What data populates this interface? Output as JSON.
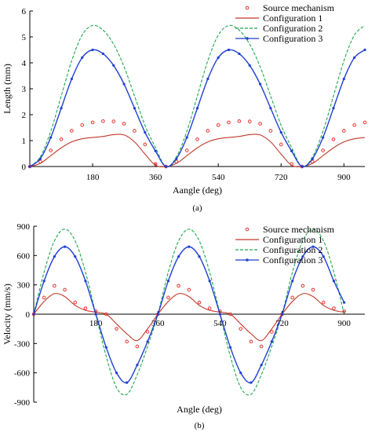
{
  "chart_data": [
    {
      "type": "line",
      "panel_label": "(a)",
      "xlabel": "Aangle (deg)",
      "ylabel": "Length (mm)",
      "xlim": [
        0,
        960
      ],
      "ylim": [
        0,
        6
      ],
      "x_ticks": [
        180,
        360,
        540,
        720,
        900
      ],
      "y_ticks": [
        0,
        1,
        2,
        3,
        4,
        5,
        6
      ],
      "legend_position": "top-right",
      "grid": false,
      "series": [
        {
          "name": "Source mechanism",
          "style": "circles",
          "color": "#e8322d",
          "x": [
            0,
            30,
            60,
            90,
            120,
            150,
            180,
            210,
            240,
            270,
            300,
            330,
            360,
            390,
            420,
            450,
            480,
            510,
            540,
            570,
            600,
            630,
            660,
            690,
            720,
            750,
            780,
            810,
            840,
            870,
            900,
            930,
            960
          ],
          "y": [
            0.0,
            0.19,
            0.62,
            1.05,
            1.38,
            1.6,
            1.7,
            1.75,
            1.74,
            1.65,
            1.38,
            0.85,
            0.1,
            0.0,
            0.19,
            0.62,
            1.05,
            1.38,
            1.6,
            1.7,
            1.75,
            1.74,
            1.65,
            1.38,
            0.85,
            0.1,
            0.0,
            0.19,
            0.62,
            1.05,
            1.38,
            1.6,
            1.7
          ]
        },
        {
          "name": "Configuration 1",
          "style": "solid",
          "color": "#c0392b",
          "x": [
            0,
            30,
            60,
            90,
            120,
            150,
            180,
            210,
            240,
            270,
            300,
            330,
            360,
            390,
            420,
            450,
            480,
            510,
            540,
            570,
            600,
            630,
            660,
            690,
            720,
            750,
            780,
            810,
            840,
            870,
            900,
            930,
            960
          ],
          "y": [
            0.0,
            0.12,
            0.42,
            0.72,
            0.95,
            1.07,
            1.12,
            1.16,
            1.23,
            1.22,
            0.95,
            0.48,
            0.05,
            0.0,
            0.12,
            0.42,
            0.72,
            0.95,
            1.07,
            1.12,
            1.16,
            1.23,
            1.22,
            0.95,
            0.48,
            0.05,
            0.0,
            0.12,
            0.42,
            0.72,
            0.95,
            1.07,
            1.12
          ]
        },
        {
          "name": "Configuration 2",
          "style": "dashed",
          "color": "#1fa84f",
          "x": [
            0,
            30,
            60,
            90,
            120,
            150,
            180,
            210,
            240,
            270,
            300,
            330,
            360,
            390,
            420,
            450,
            480,
            510,
            540,
            570,
            600,
            630,
            660,
            690,
            720,
            750,
            780,
            810,
            840,
            870,
            900,
            930,
            960
          ],
          "y": [
            0.0,
            0.37,
            1.36,
            2.72,
            4.08,
            5.07,
            5.44,
            5.26,
            4.72,
            3.85,
            2.72,
            1.59,
            0.73,
            0.0,
            0.37,
            1.36,
            2.72,
            4.08,
            5.07,
            5.44,
            5.26,
            4.72,
            3.85,
            2.72,
            1.59,
            0.73,
            0.0,
            0.37,
            1.36,
            2.72,
            4.08,
            5.07,
            5.44
          ]
        },
        {
          "name": "Configuration 3",
          "style": "solid-marker",
          "color": "#1f3fd1",
          "x": [
            0,
            30,
            60,
            90,
            120,
            150,
            180,
            210,
            240,
            270,
            300,
            330,
            360,
            390,
            420,
            450,
            480,
            510,
            540,
            570,
            600,
            630,
            660,
            690,
            720,
            750,
            780,
            810,
            840,
            870,
            900,
            930,
            960
          ],
          "y": [
            0.0,
            0.3,
            1.12,
            2.25,
            3.38,
            4.2,
            4.5,
            4.35,
            3.9,
            3.18,
            2.25,
            1.32,
            0.6,
            0.0,
            0.3,
            1.12,
            2.25,
            3.38,
            4.2,
            4.5,
            4.35,
            3.9,
            3.18,
            2.25,
            1.32,
            0.6,
            0.0,
            0.3,
            1.12,
            2.25,
            3.38,
            4.2,
            4.5
          ]
        }
      ]
    },
    {
      "type": "line",
      "panel_label": "(b)",
      "xlabel": "Angle (deg)",
      "ylabel": "Velocity (mm/s)",
      "xlim": [
        0,
        960
      ],
      "ylim": [
        -900,
        900
      ],
      "x_ticks": [
        180,
        360,
        540,
        720,
        900
      ],
      "y_ticks": [
        -900,
        -600,
        -300,
        0,
        300,
        600,
        900
      ],
      "legend_position": "top-right",
      "grid": false,
      "series": [
        {
          "name": "Source mechanism",
          "style": "circles",
          "color": "#e8322d",
          "x": [
            0,
            30,
            60,
            90,
            120,
            150,
            180,
            210,
            240,
            270,
            300,
            330,
            360,
            390,
            420,
            450,
            480,
            510,
            540,
            570,
            600,
            630,
            660,
            690,
            720,
            750,
            780,
            810,
            840,
            870,
            900
          ],
          "y": [
            0,
            170,
            290,
            250,
            120,
            60,
            30,
            0,
            -150,
            -280,
            -330,
            -180,
            0,
            170,
            290,
            250,
            120,
            60,
            30,
            0,
            -150,
            -280,
            -330,
            -180,
            0,
            170,
            290,
            250,
            120,
            60,
            30
          ]
        },
        {
          "name": "Configuration 1",
          "style": "solid",
          "color": "#c0392b",
          "x": [
            0,
            30,
            60,
            90,
            120,
            150,
            180,
            210,
            240,
            270,
            300,
            330,
            360,
            390,
            420,
            450,
            480,
            510,
            540,
            570,
            600,
            630,
            660,
            690,
            720,
            750,
            780,
            810,
            840,
            870,
            900
          ],
          "y": [
            0,
            130,
            210,
            180,
            90,
            40,
            20,
            0,
            -100,
            -200,
            -270,
            -150,
            0,
            130,
            210,
            180,
            90,
            40,
            20,
            0,
            -100,
            -200,
            -270,
            -150,
            0,
            130,
            210,
            180,
            90,
            40,
            20
          ]
        },
        {
          "name": "Configuration 2",
          "style": "dashed",
          "color": "#1fa84f",
          "x": [
            0,
            30,
            60,
            90,
            120,
            150,
            180,
            210,
            240,
            270,
            300,
            330,
            360,
            390,
            420,
            450,
            480,
            510,
            540,
            570,
            600,
            630,
            660,
            690,
            720,
            750,
            780,
            810,
            840,
            870,
            900
          ],
          "y": [
            0,
            430,
            750,
            870,
            750,
            430,
            0,
            -430,
            -750,
            -820,
            -620,
            -330,
            0,
            430,
            750,
            870,
            750,
            430,
            0,
            -430,
            -750,
            -820,
            -620,
            -330,
            0,
            430,
            750,
            870,
            750,
            430,
            0
          ]
        },
        {
          "name": "Configuration 3",
          "style": "solid-marker",
          "color": "#1f3fd1",
          "x": [
            0,
            30,
            60,
            90,
            120,
            150,
            180,
            210,
            240,
            270,
            300,
            330,
            360,
            390,
            420,
            450,
            480,
            510,
            540,
            570,
            600,
            630,
            660,
            690,
            720,
            750,
            780,
            810,
            840,
            870,
            900
          ],
          "y": [
            0,
            340,
            590,
            690,
            590,
            340,
            0,
            -340,
            -600,
            -700,
            -520,
            -280,
            0,
            340,
            590,
            690,
            590,
            340,
            0,
            -340,
            -600,
            -700,
            -520,
            -280,
            0,
            340,
            590,
            690,
            590,
            340,
            120
          ]
        }
      ]
    }
  ]
}
